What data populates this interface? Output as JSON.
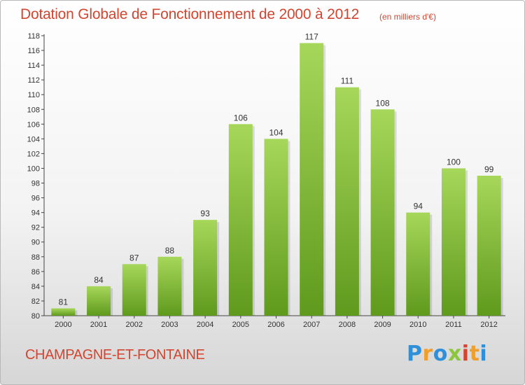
{
  "header": {
    "title": "Dotation Globale de Fonctionnement de 2000 à 2012",
    "subtitle": "(en milliers d'€)"
  },
  "footer": {
    "commune": "CHAMPAGNE-ET-FONTAINE",
    "logo_letters": [
      "P",
      "r",
      "o",
      "x",
      "i",
      "t",
      "i"
    ],
    "logo_colors": [
      "#2f8fd8",
      "#f0a02a",
      "#2f8fd8",
      "#8cc63f",
      "#d2452f",
      "#f0a02a",
      "#2f8fd8"
    ]
  },
  "colors": {
    "bar_light": "#a6d75a",
    "bar_dark": "#5f9a1d",
    "label": "#333333",
    "grid": "#cccccc"
  },
  "chart_data": {
    "type": "bar",
    "categories": [
      "2000",
      "2001",
      "2002",
      "2003",
      "2004",
      "2005",
      "2006",
      "2007",
      "2008",
      "2009",
      "2010",
      "2011",
      "2012"
    ],
    "values": [
      81,
      84,
      87,
      88,
      93,
      106,
      104,
      117,
      111,
      108,
      94,
      100,
      99
    ],
    "title": "Dotation Globale de Fonctionnement de 2000 à 2012",
    "subtitle": "(en milliers d'€)",
    "ylim": [
      80,
      118
    ],
    "ytick_step": 2,
    "grid": false,
    "legend": "none"
  }
}
